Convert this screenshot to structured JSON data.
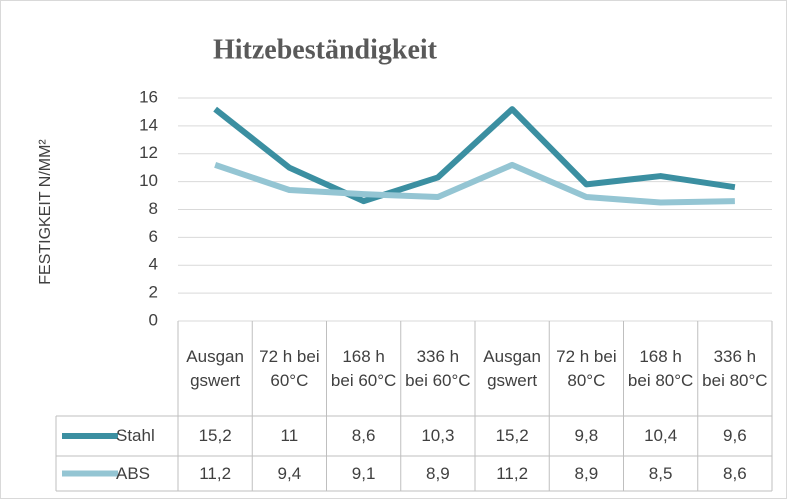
{
  "chart_data": {
    "type": "line",
    "title": "Hitzebeständigkeit",
    "y_label": "FESTIGKEIT N/MM²",
    "categories": [
      "Ausgangswert",
      "72 h bei 60°C",
      "168 h bei 60°C",
      "336 h bei 60°C",
      "Ausgangswert",
      "72 h bei 80°C",
      "168 h bei 80°C",
      "336 h bei 80°C"
    ],
    "series": [
      {
        "name": "Stahl",
        "color": "#3b8fa1",
        "values": [
          15.2,
          11,
          8.6,
          10.3,
          15.2,
          9.8,
          10.4,
          9.6
        ],
        "value_labels": [
          "15,2",
          "11",
          "8,6",
          "10,3",
          "15,2",
          "9,8",
          "10,4",
          "9,6"
        ]
      },
      {
        "name": "ABS",
        "color": "#94c5d3",
        "values": [
          11.2,
          9.4,
          9.1,
          8.9,
          11.2,
          8.9,
          8.5,
          8.6
        ],
        "value_labels": [
          "11,2",
          "9,4",
          "9,1",
          "8,9",
          "11,2",
          "8,9",
          "8,5",
          "8,6"
        ]
      }
    ],
    "ylim": [
      0,
      16
    ],
    "yticks": [
      0,
      2,
      4,
      6,
      8,
      10,
      12,
      14,
      16
    ],
    "grid": true
  }
}
